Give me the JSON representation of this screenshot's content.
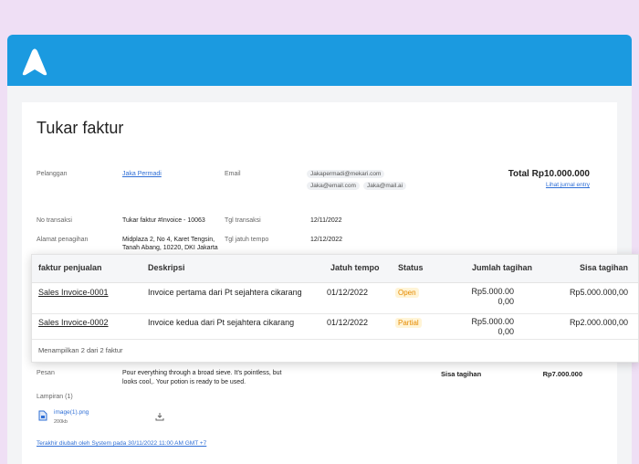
{
  "header": {
    "title": "Tukar faktur"
  },
  "details": {
    "customer_label": "Pelanggan",
    "customer": "Jaka Permadi",
    "email_label": "Email",
    "emails": [
      "Jakapermadi@mekari.com",
      "Jaka@email.com",
      "Jaka@mail.ai"
    ],
    "total": "Total Rp10.000.000",
    "journal_link": "Lihat jurnal entry",
    "transaction_label": "No transaksi",
    "transaction": "Tukar faktur #Invoice - 10063",
    "date_label": "Tgl transaksi",
    "date": "12/11/2022",
    "address_label": "Alamat penagihan",
    "address": [
      "Midplaza 2, No 4, Karet Tengsin,",
      "Tanah Abang, 10220, DKI Jakarta"
    ],
    "due_label": "Tgl jatuh tempo",
    "due": "12/12/2022"
  },
  "table": {
    "columns": [
      "faktur penjualan",
      "Deskripsi",
      "Jatuh tempo",
      "Status",
      "Jumlah tagihan",
      "Sisa tagihan"
    ],
    "rows": [
      [
        "Sales Invoice-0001",
        "Invoice pertama dari Pt sejahtera cikarang",
        "01/12/2022",
        "Open",
        "Rp5.000.000,00",
        "Rp5.000.000,00"
      ],
      [
        "Sales Invoice-0002",
        "Invoice kedua dari Pt sejahtera cikarang",
        "01/12/2022",
        "Partial",
        "Rp5.000.000,00",
        "Rp2.000.000,00"
      ]
    ],
    "footer": "Menampilkan 2 dari 2 faktur"
  },
  "message": {
    "label": "Pesan",
    "text": [
      "Pour everything through a broad sieve. It's pointless, but",
      "looks cool,. Your potion is ready to be used."
    ],
    "balance_label": "Sisa tagihan",
    "balance": "Rp7.000.000"
  },
  "attachments": {
    "label": "Lampiran (1)",
    "file": "image(1).png",
    "size": "200kb"
  },
  "last_modified": "Terakhir diubah oleh System pada 30/11/2022 11:00 AM GMT +7"
}
